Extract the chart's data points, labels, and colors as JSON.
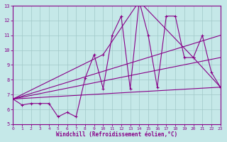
{
  "xlabel": "Windchill (Refroidissement éolien,°C)",
  "background_color": "#c5e8e8",
  "grid_color": "#a0c8c8",
  "line_color": "#880088",
  "xlim_min": 0,
  "xlim_max": 23,
  "ylim_min": 5,
  "ylim_max": 13,
  "xticks": [
    0,
    1,
    2,
    3,
    4,
    5,
    6,
    7,
    8,
    9,
    10,
    11,
    12,
    13,
    14,
    15,
    16,
    17,
    18,
    19,
    20,
    21,
    22,
    23
  ],
  "yticks": [
    5,
    6,
    7,
    8,
    9,
    10,
    11,
    12,
    13
  ],
  "main_x": [
    0,
    1,
    2,
    3,
    4,
    5,
    6,
    7,
    8,
    9,
    10,
    11,
    12,
    13,
    14,
    15,
    16,
    17,
    18,
    19,
    20,
    21,
    22,
    23
  ],
  "main_y": [
    6.7,
    6.3,
    6.4,
    6.4,
    6.4,
    5.5,
    5.8,
    5.5,
    8.1,
    9.7,
    7.4,
    11.0,
    12.3,
    7.4,
    13.3,
    11.0,
    7.5,
    12.3,
    12.3,
    9.5,
    9.5,
    11.0,
    8.5,
    7.5
  ],
  "line1_x": [
    0,
    23
  ],
  "line1_y": [
    6.7,
    7.5
  ],
  "line2_x": [
    0,
    23
  ],
  "line2_y": [
    6.7,
    9.5
  ],
  "line3_x": [
    0,
    23
  ],
  "line3_y": [
    6.7,
    11.0
  ],
  "curve_x": [
    0,
    10,
    14,
    20,
    23
  ],
  "curve_y": [
    6.7,
    9.7,
    13.3,
    9.5,
    7.5
  ]
}
